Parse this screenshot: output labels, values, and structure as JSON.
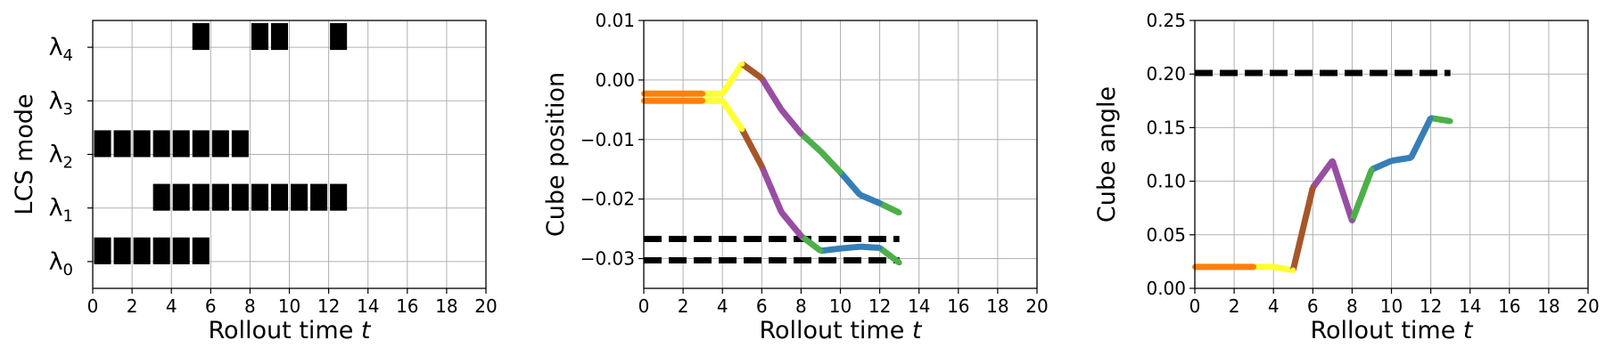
{
  "figure": {
    "background": "#ffffff",
    "grid_color": "#b0b0b0"
  },
  "chart_data": [
    {
      "type": "heatmap",
      "id": "lcs",
      "xlabel": "Rollout time ",
      "xlabel_var": "t",
      "ylabel": "LCS mode",
      "xlim": [
        0,
        20
      ],
      "xticks": [
        0,
        2,
        4,
        6,
        8,
        10,
        12,
        14,
        16,
        18,
        20
      ],
      "ylim": [
        -0.5,
        4.5
      ],
      "yticks": [
        {
          "value": 0,
          "symbol": "λ",
          "sub": "0"
        },
        {
          "value": 1,
          "symbol": "λ",
          "sub": "1"
        },
        {
          "value": 2,
          "symbol": "λ",
          "sub": "2"
        },
        {
          "value": 3,
          "symbol": "λ",
          "sub": "3"
        },
        {
          "value": 4,
          "symbol": "λ",
          "sub": "4"
        }
      ],
      "grid": true,
      "cell_color": "#000000",
      "active": [
        {
          "mode": 0,
          "times": [
            0,
            1,
            2,
            3,
            4,
            5
          ]
        },
        {
          "mode": 1,
          "times": [
            3,
            4,
            5,
            6,
            7,
            8,
            9,
            10,
            11,
            12
          ]
        },
        {
          "mode": 2,
          "times": [
            0,
            1,
            2,
            3,
            4,
            5,
            6,
            7
          ]
        },
        {
          "mode": 3,
          "times": []
        },
        {
          "mode": 4,
          "times": [
            5,
            8,
            9,
            12
          ]
        }
      ]
    },
    {
      "type": "line",
      "id": "position",
      "xlabel": "Rollout time ",
      "xlabel_var": "t",
      "ylabel": "Cube position",
      "xlim": [
        0,
        20
      ],
      "xticks": [
        0,
        2,
        4,
        6,
        8,
        10,
        12,
        14,
        16,
        18,
        20
      ],
      "ylim": [
        -0.035,
        0.01
      ],
      "yticks": [
        0.01,
        0.0,
        -0.01,
        -0.02,
        -0.03
      ],
      "ytick_labels": [
        "0.01",
        "0.00",
        "−0.01",
        "−0.02",
        "−0.03"
      ],
      "grid": true,
      "hlines": [
        {
          "y": -0.0267,
          "x_range": [
            0,
            13
          ],
          "color": "#000000",
          "style": "dashed"
        },
        {
          "y": -0.0303,
          "x_range": [
            0,
            13
          ],
          "color": "#000000",
          "style": "dashed"
        }
      ],
      "series": [
        {
          "x": [
            0,
            1,
            2,
            3,
            4,
            5,
            6,
            7,
            8,
            9,
            10,
            11,
            12,
            13
          ],
          "y": [
            -0.0023,
            -0.0023,
            -0.0023,
            -0.0023,
            -0.0023,
            0.0027,
            0.0003,
            -0.005,
            -0.009,
            -0.012,
            -0.0155,
            -0.0193,
            -0.0207,
            -0.0223
          ],
          "colors": [
            "#ff7f0e",
            "#ff7f0e",
            "#ff7f0e",
            "#ffff33",
            "#ffff33",
            "#a65628",
            "#984ea3",
            "#984ea3",
            "#4daf4a",
            "#4daf4a",
            "#377eb8",
            "#377eb8",
            "#4daf4a"
          ]
        },
        {
          "x": [
            0,
            1,
            2,
            3,
            4,
            5,
            6,
            7,
            8,
            9,
            10,
            11,
            12,
            13
          ],
          "y": [
            -0.0035,
            -0.0035,
            -0.0035,
            -0.0035,
            -0.0035,
            -0.0083,
            -0.0145,
            -0.0222,
            -0.0262,
            -0.0287,
            -0.0283,
            -0.028,
            -0.0282,
            -0.0307
          ],
          "colors": [
            "#ff7f0e",
            "#ff7f0e",
            "#ff7f0e",
            "#ffff33",
            "#ffff33",
            "#a65628",
            "#984ea3",
            "#984ea3",
            "#4daf4a",
            "#377eb8",
            "#377eb8",
            "#377eb8",
            "#4daf4a"
          ]
        }
      ]
    },
    {
      "type": "line",
      "id": "angle",
      "xlabel": "Rollout time ",
      "xlabel_var": "t",
      "ylabel": "Cube angle",
      "xlim": [
        0,
        20
      ],
      "xticks": [
        0,
        2,
        4,
        6,
        8,
        10,
        12,
        14,
        16,
        18,
        20
      ],
      "ylim": [
        0,
        0.25
      ],
      "yticks": [
        0.25,
        0.2,
        0.15,
        0.1,
        0.05,
        0.0
      ],
      "ytick_labels": [
        "0.25",
        "0.20",
        "0.15",
        "0.10",
        "0.05",
        "0.00"
      ],
      "grid": true,
      "hlines": [
        {
          "y": 0.201,
          "x_range": [
            0,
            13
          ],
          "color": "#000000",
          "style": "dashed"
        }
      ],
      "series": [
        {
          "x": [
            0,
            1,
            2,
            3,
            4,
            5,
            6,
            7,
            8,
            9,
            10,
            11,
            12,
            13
          ],
          "y": [
            0.02,
            0.02,
            0.02,
            0.02,
            0.02,
            0.017,
            0.094,
            0.119,
            0.063,
            0.111,
            0.119,
            0.122,
            0.159,
            0.156
          ],
          "colors": [
            "#ff7f0e",
            "#ff7f0e",
            "#ff7f0e",
            "#ffff33",
            "#ffff33",
            "#a65628",
            "#984ea3",
            "#984ea3",
            "#4daf4a",
            "#377eb8",
            "#377eb8",
            "#377eb8",
            "#4daf4a"
          ]
        }
      ]
    }
  ]
}
